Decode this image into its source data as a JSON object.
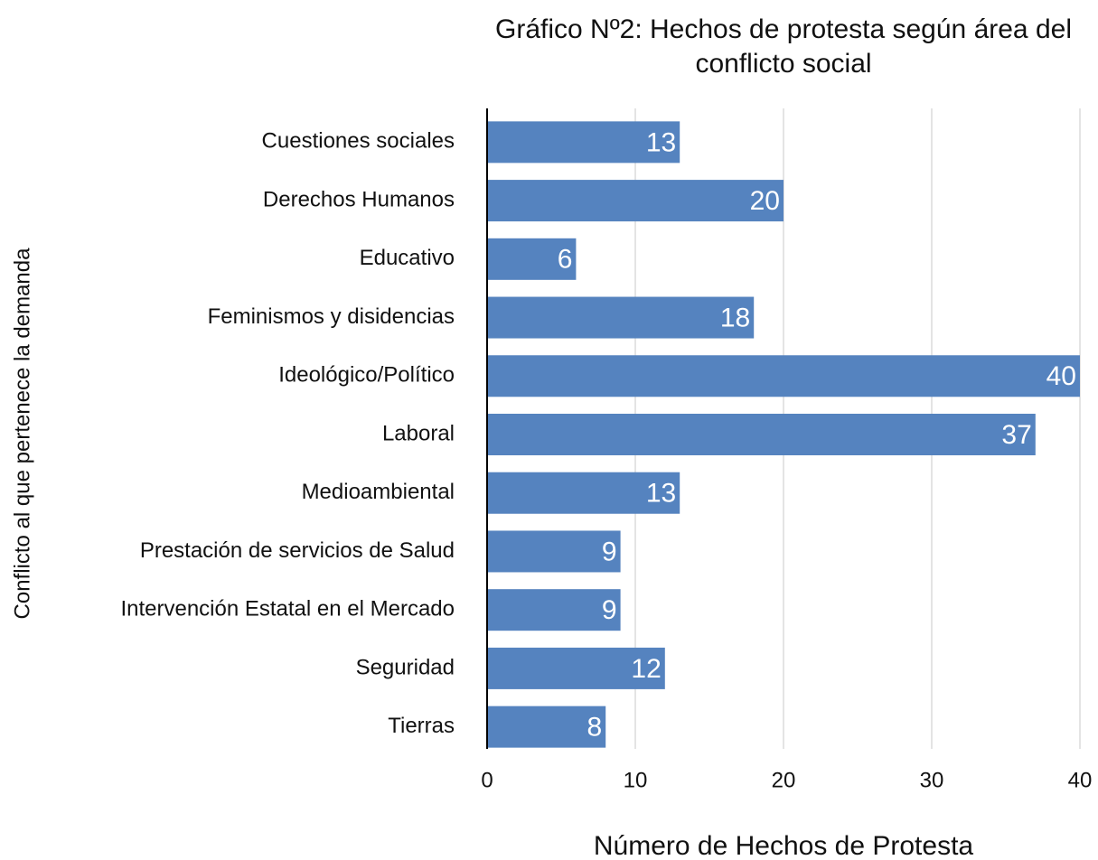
{
  "chart_data": {
    "type": "bar",
    "orientation": "horizontal",
    "title": "Gráfico Nº2: Hechos de protesta según área del conflicto social",
    "x_label": "Número de Hechos de Protesta",
    "y_label": "Conflicto al que pertenece la demanda",
    "categories": [
      "Cuestiones sociales",
      "Derechos Humanos",
      "Educativo",
      "Feminismos y disidencias",
      "Ideológico/Político",
      "Laboral",
      "Medioambiental",
      "Prestación de servicios de Salud",
      "Intervención Estatal en el Mercado",
      "Seguridad",
      "Tierras"
    ],
    "values": [
      13,
      20,
      6,
      18,
      40,
      37,
      13,
      9,
      9,
      12,
      8
    ],
    "color": "#5583bf",
    "xlim": [
      0,
      40
    ],
    "xticks": [
      0,
      10,
      20,
      30,
      40
    ],
    "grid": true
  }
}
